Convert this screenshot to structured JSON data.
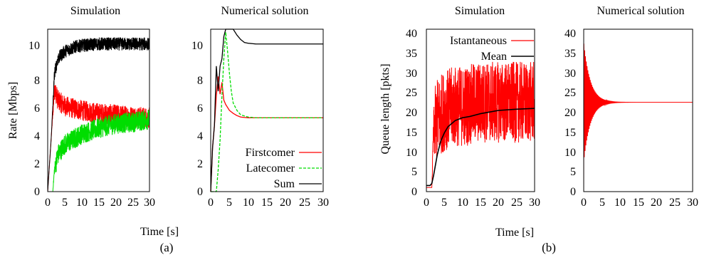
{
  "figure": {
    "caption_a": "(a)",
    "caption_b": "(b)"
  },
  "colors": {
    "firstcomer": "#ff0000",
    "latecomer": "#00dd00",
    "sum": "#000000",
    "instantaneous": "#ff0000",
    "mean": "#000000"
  },
  "chart_data": [
    {
      "type": "line",
      "title": "Simulation",
      "xlabel": "",
      "ylabel": "Rate [Mbps]",
      "xlim": [
        0,
        30
      ],
      "ylim": [
        0,
        11
      ],
      "xticks": [
        "0",
        "5",
        "10",
        "15",
        "20",
        "25",
        "30"
      ],
      "yticks": [
        "0",
        "2",
        "4",
        "6",
        "8",
        "10"
      ],
      "series": [
        {
          "x": [
            0,
            1,
            2,
            3,
            5,
            8,
            10,
            15,
            20,
            25,
            30
          ],
          "values": [
            0,
            3.5,
            7,
            6.2,
            5.8,
            5.6,
            5.5,
            5.3,
            5.2,
            5.1,
            5.0
          ],
          "noise": 0.7
        },
        {
          "x": [
            0,
            1.5,
            2,
            3,
            5,
            8,
            10,
            15,
            20,
            25,
            30
          ],
          "values": [
            0,
            0,
            1.5,
            2.5,
            3.2,
            3.6,
            3.9,
            4.3,
            4.6,
            4.7,
            4.9
          ],
          "noise": 0.7
        },
        {
          "x": [
            0,
            1,
            2,
            3,
            5,
            8,
            10,
            15,
            20,
            25,
            30
          ],
          "values": [
            0,
            3.5,
            8,
            9.0,
            9.5,
            9.8,
            9.9,
            10,
            10,
            10,
            10
          ],
          "noise": 0.45
        }
      ]
    },
    {
      "type": "line",
      "title": "Numerical solution",
      "xlabel": "Time [s]",
      "ylabel": "",
      "xlim": [
        0,
        30
      ],
      "ylim": [
        0,
        11
      ],
      "xticks": [
        "0",
        "5",
        "10",
        "15",
        "20",
        "25",
        "30"
      ],
      "yticks": [
        "0",
        "2",
        "4",
        "6",
        "8",
        "10"
      ],
      "series": [
        {
          "name": "Firstcomer",
          "x": [
            0,
            0.5,
            1,
            1.5,
            2,
            2.5,
            3,
            3.5,
            4,
            5,
            6,
            7,
            8,
            10,
            12,
            15,
            20,
            30
          ],
          "values": [
            0,
            3,
            4.5,
            6.5,
            7.8,
            6.6,
            7.4,
            6.2,
            5.9,
            5.5,
            5.3,
            5.15,
            5.05,
            5.0,
            5.0,
            5.0,
            5.0,
            5.0
          ]
        },
        {
          "name": "Latecomer",
          "x": [
            0,
            1.5,
            2,
            2.5,
            3,
            3.5,
            4,
            4.5,
            5,
            5.5,
            6,
            7,
            8,
            10,
            12,
            15,
            20,
            30
          ],
          "values": [
            0,
            0,
            1.5,
            3.5,
            6.5,
            9,
            10.8,
            9.5,
            8,
            6.8,
            6,
            5.5,
            5.2,
            5.05,
            5.0,
            5.0,
            5.0,
            5.0
          ]
        },
        {
          "name": "Sum",
          "x": [
            0,
            0.5,
            1,
            1.5,
            2,
            2.5,
            3,
            3.5,
            4,
            5,
            6,
            7,
            8,
            9,
            10,
            12,
            15,
            20,
            30
          ],
          "values": [
            0,
            3,
            4.5,
            8.5,
            6.8,
            8.5,
            9,
            10.5,
            11,
            11,
            11,
            10.6,
            10.3,
            10.1,
            10.05,
            10,
            10,
            10,
            10
          ]
        }
      ]
    },
    {
      "type": "line",
      "title": "Simulation",
      "xlabel": "",
      "ylabel": "Queue length [pkts]",
      "xlim": [
        0,
        30
      ],
      "ylim": [
        0,
        40
      ],
      "xticks": [
        "0",
        "5",
        "10",
        "15",
        "20",
        "25",
        "30"
      ],
      "yticks": [
        "0",
        "5",
        "10",
        "15",
        "20",
        "25",
        "30",
        "35",
        "40"
      ],
      "series": [
        {
          "name": "Istantaneous",
          "x": [
            0,
            1.5,
            2,
            3,
            5,
            8,
            10,
            15,
            20,
            25,
            30
          ],
          "values": [
            1,
            1,
            15,
            18,
            20,
            21,
            21,
            22,
            22,
            22,
            22
          ],
          "noise": 10
        },
        {
          "name": "Mean",
          "x": [
            0,
            1,
            1.5,
            2,
            3,
            4,
            5,
            6,
            8,
            10,
            12,
            15,
            20,
            25,
            30
          ],
          "values": [
            1.5,
            1.5,
            2,
            4,
            9,
            12.5,
            14.5,
            16,
            17.5,
            18.2,
            18.5,
            19.2,
            20,
            20.3,
            20.5
          ]
        }
      ]
    },
    {
      "type": "line",
      "title": "Numerical solution",
      "xlabel": "",
      "ylabel": "",
      "xlim": [
        0,
        30
      ],
      "ylim": [
        0,
        40
      ],
      "xticks": [
        "0",
        "5",
        "10",
        "15",
        "20",
        "25",
        "30"
      ],
      "yticks": [
        "0",
        "5",
        "10",
        "15",
        "20",
        "25",
        "30",
        "35",
        "40"
      ],
      "series": [
        {
          "x": [
            0,
            30
          ],
          "values": [
            22,
            22
          ],
          "oscillation": {
            "amplitude": 15,
            "decay": 0.55,
            "period": 0.22
          }
        }
      ]
    }
  ]
}
